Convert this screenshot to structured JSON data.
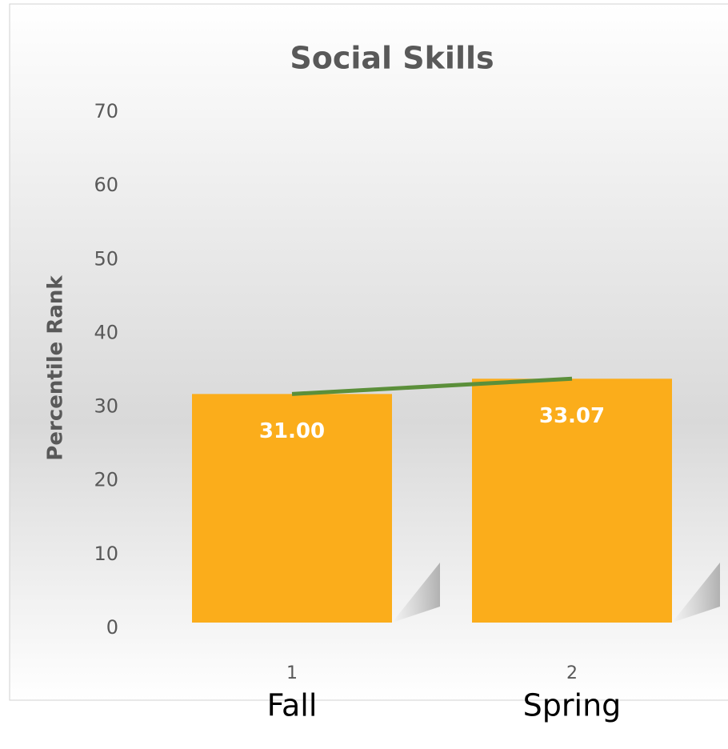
{
  "chart_data": {
    "type": "bar",
    "title": "Social Skills",
    "y_label": "Percentile Rank",
    "categories": [
      "1",
      "2"
    ],
    "category_names": [
      "Fall",
      "Spring"
    ],
    "series": [
      {
        "name": "Social Skills",
        "color": "#fbad1b",
        "values": [
          31,
          33.07
        ],
        "value_labels": [
          "31.00",
          "33.07"
        ]
      }
    ],
    "trendline": true,
    "trendline_color": "#5b8f3a",
    "ylim": [
      0,
      70
    ],
    "yticks": [
      0,
      10,
      20,
      30,
      40,
      50,
      60,
      70
    ],
    "grid": false
  }
}
